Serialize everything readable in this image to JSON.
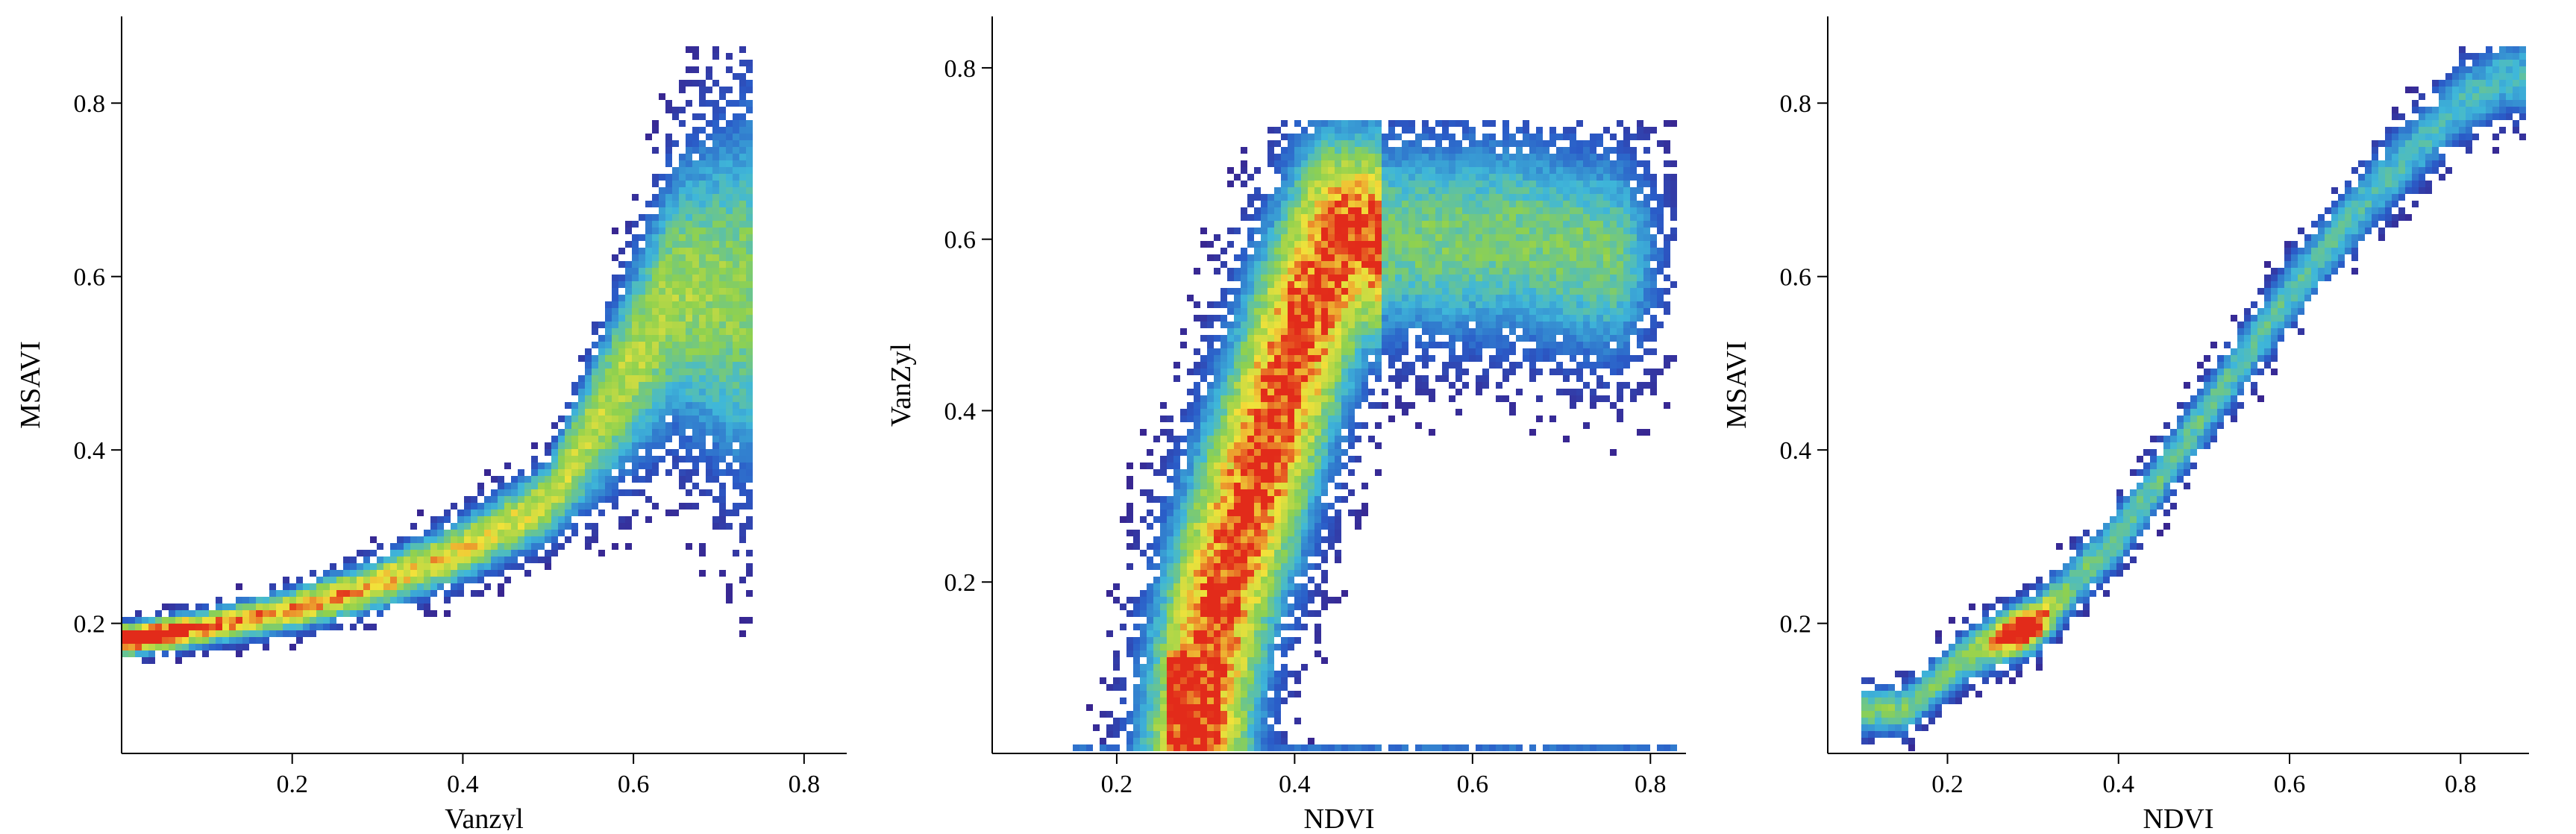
{
  "chart_data": [
    {
      "type": "heatmap",
      "subtype": "density-scatter",
      "title": "",
      "xlabel": "Vanzyl",
      "ylabel": "MSAVI",
      "xlim": [
        0.0,
        0.85
      ],
      "ylim": [
        0.05,
        0.9
      ],
      "xticks": [
        0.2,
        0.4,
        0.6,
        0.8
      ],
      "yticks": [
        0.2,
        0.4,
        0.6,
        0.8
      ],
      "xtick_labels": [
        "0.2",
        "0.4",
        "0.6",
        "0.8"
      ],
      "ytick_labels": [
        "0.2",
        "0.4",
        "0.6",
        "0.8"
      ],
      "grid": false,
      "colormap": [
        "#3a1f8a",
        "#2a5cc8",
        "#3fb7d9",
        "#8fd14f",
        "#f2e23a",
        "#e22b1a"
      ],
      "density_ridge": [
        [
          0.0,
          0.18
        ],
        [
          0.1,
          0.195
        ],
        [
          0.2,
          0.215
        ],
        [
          0.3,
          0.245
        ],
        [
          0.4,
          0.285
        ],
        [
          0.5,
          0.34
        ],
        [
          0.55,
          0.42
        ],
        [
          0.6,
          0.5
        ],
        [
          0.65,
          0.58
        ]
      ],
      "density_peak": [
        0.02,
        0.18
      ]
    },
    {
      "type": "heatmap",
      "subtype": "density-scatter",
      "title": "",
      "xlabel": "NDVI",
      "ylabel": "VanZyl",
      "xlim": [
        0.06,
        0.84
      ],
      "ylim": [
        0.0,
        0.86
      ],
      "xticks": [
        0.2,
        0.4,
        0.6,
        0.8
      ],
      "yticks": [
        0.2,
        0.4,
        0.6,
        0.8
      ],
      "xtick_labels": [
        "0.2",
        "0.4",
        "0.6",
        "0.8"
      ],
      "ytick_labels": [
        "0.2",
        "0.4",
        "0.6",
        "0.8"
      ],
      "grid": false,
      "colormap": [
        "#3a1f8a",
        "#2a5cc8",
        "#3fb7d9",
        "#8fd14f",
        "#f2e23a",
        "#e22b1a"
      ],
      "density_ridge": [
        [
          0.29,
          0.0
        ],
        [
          0.3,
          0.1
        ],
        [
          0.32,
          0.2
        ],
        [
          0.35,
          0.3
        ],
        [
          0.38,
          0.4
        ],
        [
          0.41,
          0.5
        ],
        [
          0.45,
          0.6
        ],
        [
          0.55,
          0.6
        ],
        [
          0.65,
          0.6
        ],
        [
          0.75,
          0.58
        ]
      ],
      "density_peak": [
        0.29,
        0.0
      ]
    },
    {
      "type": "heatmap",
      "subtype": "density-scatter",
      "title": "",
      "xlabel": "NDVI",
      "ylabel": "MSAVI",
      "xlim": [
        0.06,
        0.88
      ],
      "ylim": [
        0.05,
        0.9
      ],
      "xticks": [
        0.2,
        0.4,
        0.6,
        0.8
      ],
      "yticks": [
        0.2,
        0.4,
        0.6,
        0.8
      ],
      "xtick_labels": [
        "0.2",
        "0.4",
        "0.6",
        "0.8"
      ],
      "ytick_labels": [
        "0.2",
        "0.4",
        "0.6",
        "0.8"
      ],
      "grid": false,
      "colormap": [
        "#3a1f8a",
        "#2a5cc8",
        "#3fb7d9",
        "#8fd14f",
        "#f2e23a",
        "#e22b1a"
      ],
      "density_ridge": [
        [
          0.15,
          0.1
        ],
        [
          0.22,
          0.16
        ],
        [
          0.3,
          0.2
        ],
        [
          0.4,
          0.3
        ],
        [
          0.5,
          0.44
        ],
        [
          0.6,
          0.58
        ],
        [
          0.7,
          0.7
        ],
        [
          0.8,
          0.8
        ],
        [
          0.85,
          0.83
        ]
      ],
      "density_peak": [
        0.29,
        0.19
      ]
    }
  ]
}
